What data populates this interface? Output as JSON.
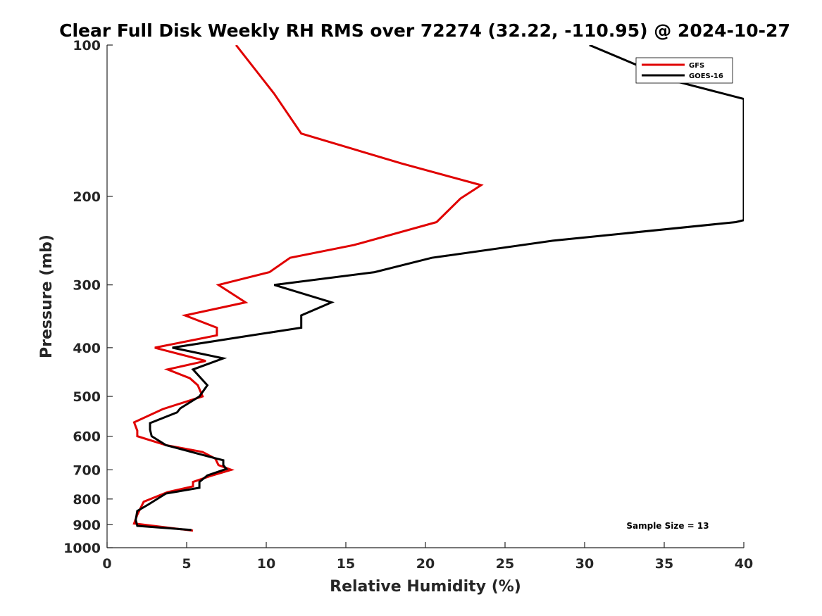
{
  "chart_data": {
    "type": "line",
    "title": "Clear Full Disk Weekly RH RMS over 72274 (32.22, -110.95) @ 2024-10-27",
    "xlabel": "Relative Humidity (%)",
    "ylabel": "Pressure (mb)",
    "xlim": [
      0,
      40
    ],
    "ylim": [
      100,
      1000
    ],
    "yscale": "log",
    "yreversed": true,
    "xticks": [
      0,
      5,
      10,
      15,
      20,
      25,
      30,
      35,
      40
    ],
    "yticks": [
      100,
      200,
      300,
      400,
      500,
      600,
      700,
      800,
      900,
      1000
    ],
    "legend": "top-right",
    "annotation": "Sample Size = 13",
    "series": [
      {
        "name": "GFS",
        "color": "#e00000",
        "points": [
          [
            8.1,
            100
          ],
          [
            10.5,
            125
          ],
          [
            12.2,
            150
          ],
          [
            18.5,
            172
          ],
          [
            23.5,
            190
          ],
          [
            22.2,
            202
          ],
          [
            20.7,
            225
          ],
          [
            15.5,
            250
          ],
          [
            11.5,
            265
          ],
          [
            10.2,
            283
          ],
          [
            7.0,
            300
          ],
          [
            8.7,
            325
          ],
          [
            4.9,
            345
          ],
          [
            6.9,
            365
          ],
          [
            6.9,
            378
          ],
          [
            3.0,
            400
          ],
          [
            6.2,
            425
          ],
          [
            3.8,
            442
          ],
          [
            5.2,
            460
          ],
          [
            5.7,
            475
          ],
          [
            6.0,
            500
          ],
          [
            3.5,
            530
          ],
          [
            1.7,
            563
          ],
          [
            1.9,
            585
          ],
          [
            1.9,
            600
          ],
          [
            3.7,
            625
          ],
          [
            6.0,
            645
          ],
          [
            6.8,
            665
          ],
          [
            7.0,
            685
          ],
          [
            7.8,
            700
          ],
          [
            6.5,
            720
          ],
          [
            5.4,
            740
          ],
          [
            5.4,
            755
          ],
          [
            3.8,
            775
          ],
          [
            2.3,
            810
          ],
          [
            1.9,
            860
          ],
          [
            1.7,
            895
          ],
          [
            5.4,
            925
          ]
        ]
      },
      {
        "name": "GOES-16",
        "color": "#000000",
        "points": [
          [
            30.3,
            100
          ],
          [
            35.7,
            118
          ],
          [
            40.0,
            128
          ],
          [
            40.0,
            223
          ],
          [
            39.5,
            225
          ],
          [
            28.0,
            245
          ],
          [
            20.4,
            265
          ],
          [
            16.8,
            283
          ],
          [
            10.5,
            300
          ],
          [
            14.1,
            325
          ],
          [
            12.2,
            345
          ],
          [
            12.2,
            365
          ],
          [
            8.6,
            380
          ],
          [
            4.1,
            400
          ],
          [
            7.3,
            420
          ],
          [
            5.4,
            442
          ],
          [
            5.9,
            460
          ],
          [
            6.3,
            475
          ],
          [
            5.8,
            500
          ],
          [
            4.6,
            528
          ],
          [
            4.4,
            538
          ],
          [
            2.7,
            565
          ],
          [
            2.7,
            582
          ],
          [
            2.8,
            600
          ],
          [
            3.7,
            625
          ],
          [
            6.5,
            660
          ],
          [
            7.3,
            670
          ],
          [
            7.3,
            685
          ],
          [
            7.5,
            697
          ],
          [
            6.3,
            718
          ],
          [
            5.8,
            740
          ],
          [
            5.8,
            760
          ],
          [
            3.7,
            780
          ],
          [
            2.6,
            820
          ],
          [
            1.9,
            845
          ],
          [
            1.8,
            880
          ],
          [
            1.9,
            905
          ],
          [
            5.3,
            922
          ]
        ]
      }
    ]
  }
}
